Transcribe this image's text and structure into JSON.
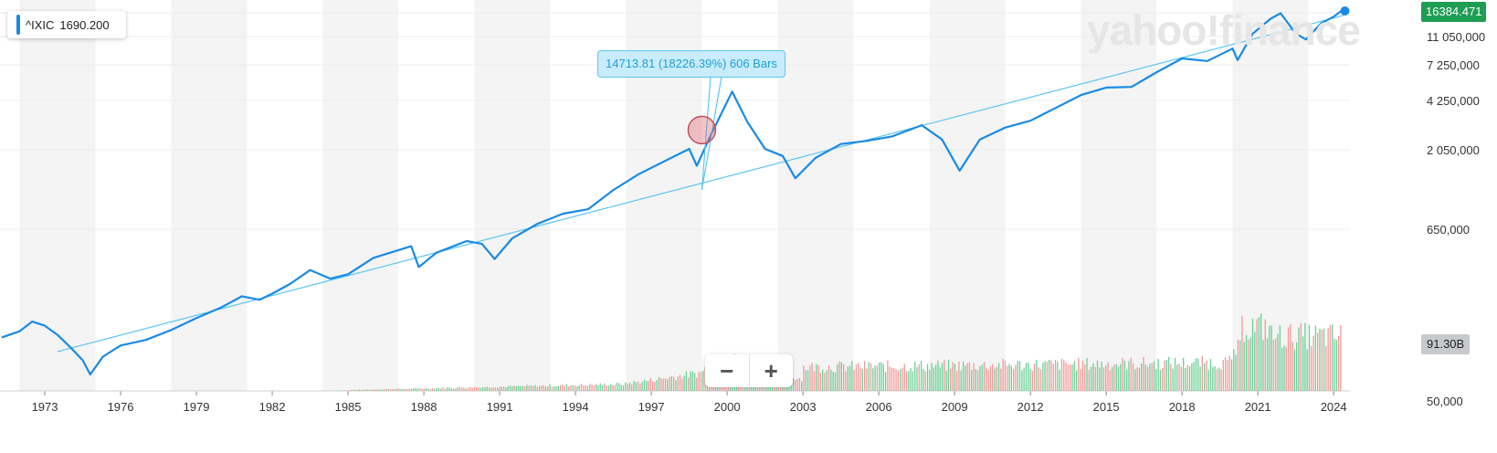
{
  "header": {
    "ticker_symbol": "^IXIC",
    "ticker_value": "1690.200",
    "watermark": "yahoo!finance"
  },
  "badges": {
    "last_price": "16384.471",
    "volume": "91.30B"
  },
  "measure_callout": "14713.81 (18226.39%) 606 Bars",
  "zoom": {
    "minus": "−",
    "plus": "+"
  },
  "colors": {
    "price_line": "#1a8ae5",
    "trend_line": "#5cc6f2",
    "volume_up": "#6ccf97",
    "volume_down": "#f29999",
    "last_price_badge": "#1e9e52",
    "band": "#f4f4f4"
  },
  "chart_data": {
    "type": "line",
    "x_ticks": [
      "1973",
      "1976",
      "1979",
      "1982",
      "1985",
      "1988",
      "1991",
      "1994",
      "1997",
      "2000",
      "2003",
      "2006",
      "2009",
      "2012",
      "2015",
      "2018",
      "2021",
      "2024"
    ],
    "y_ticks": [
      "11 050,000",
      "7 250,000",
      "4 250,000",
      "2 050,000",
      "650,000",
      "50,000"
    ],
    "y_scale": "log",
    "xlim": [
      1971.3,
      2024.5
    ],
    "series": [
      {
        "values": [
          [
            1971.3,
            100
          ],
          [
            1972.0,
            110
          ],
          [
            1972.5,
            128
          ],
          [
            1973.0,
            120
          ],
          [
            1973.5,
            104
          ],
          [
            1974.0,
            86
          ],
          [
            1974.5,
            70
          ],
          [
            1974.8,
            56
          ],
          [
            1975.3,
            74
          ],
          [
            1976.0,
            88
          ],
          [
            1977.0,
            96
          ],
          [
            1978.0,
            112
          ],
          [
            1979.0,
            135
          ],
          [
            1980.0,
            160
          ],
          [
            1980.8,
            190
          ],
          [
            1981.5,
            180
          ],
          [
            1982.0,
            198
          ],
          [
            1982.7,
            230
          ],
          [
            1983.5,
            286
          ],
          [
            1984.3,
            250
          ],
          [
            1985.0,
            268
          ],
          [
            1986.0,
            346
          ],
          [
            1987.5,
            415
          ],
          [
            1987.8,
            300
          ],
          [
            1988.5,
            375
          ],
          [
            1989.7,
            450
          ],
          [
            1990.3,
            430
          ],
          [
            1990.8,
            340
          ],
          [
            1991.5,
            470
          ],
          [
            1992.5,
            590
          ],
          [
            1993.5,
            690
          ],
          [
            1994.5,
            740
          ],
          [
            1995.5,
            1000
          ],
          [
            1996.5,
            1280
          ],
          [
            1997.5,
            1560
          ],
          [
            1998.5,
            1900
          ],
          [
            1998.8,
            1460
          ],
          [
            1999.4,
            2450
          ],
          [
            2000.2,
            4650
          ],
          [
            2000.8,
            2900
          ],
          [
            2001.5,
            1900
          ],
          [
            2002.2,
            1700
          ],
          [
            2002.7,
            1200
          ],
          [
            2003.5,
            1650
          ],
          [
            2004.5,
            2050
          ],
          [
            2005.5,
            2150
          ],
          [
            2006.5,
            2300
          ],
          [
            2007.7,
            2750
          ],
          [
            2008.5,
            2200
          ],
          [
            2009.2,
            1350
          ],
          [
            2010.0,
            2200
          ],
          [
            2011.0,
            2650
          ],
          [
            2012.0,
            2950
          ],
          [
            2013.0,
            3600
          ],
          [
            2014.0,
            4400
          ],
          [
            2015.0,
            4950
          ],
          [
            2016.0,
            5000
          ],
          [
            2017.0,
            6300
          ],
          [
            2018.0,
            7800
          ],
          [
            2019.0,
            7500
          ],
          [
            2020.0,
            9100
          ],
          [
            2020.2,
            7600
          ],
          [
            2020.8,
            11500
          ],
          [
            2021.5,
            14500
          ],
          [
            2021.9,
            15800
          ],
          [
            2022.5,
            11500
          ],
          [
            2022.9,
            10500
          ],
          [
            2023.5,
            13500
          ],
          [
            2024.0,
            15000
          ],
          [
            2024.3,
            16384
          ]
        ]
      }
    ],
    "trend_line": [
      [
        1973.5,
        80
      ],
      [
        2024.4,
        15300
      ]
    ],
    "measure_start": [
      1999.0,
      1000
    ],
    "highlight_marker": [
      1999.0,
      2550
    ]
  }
}
